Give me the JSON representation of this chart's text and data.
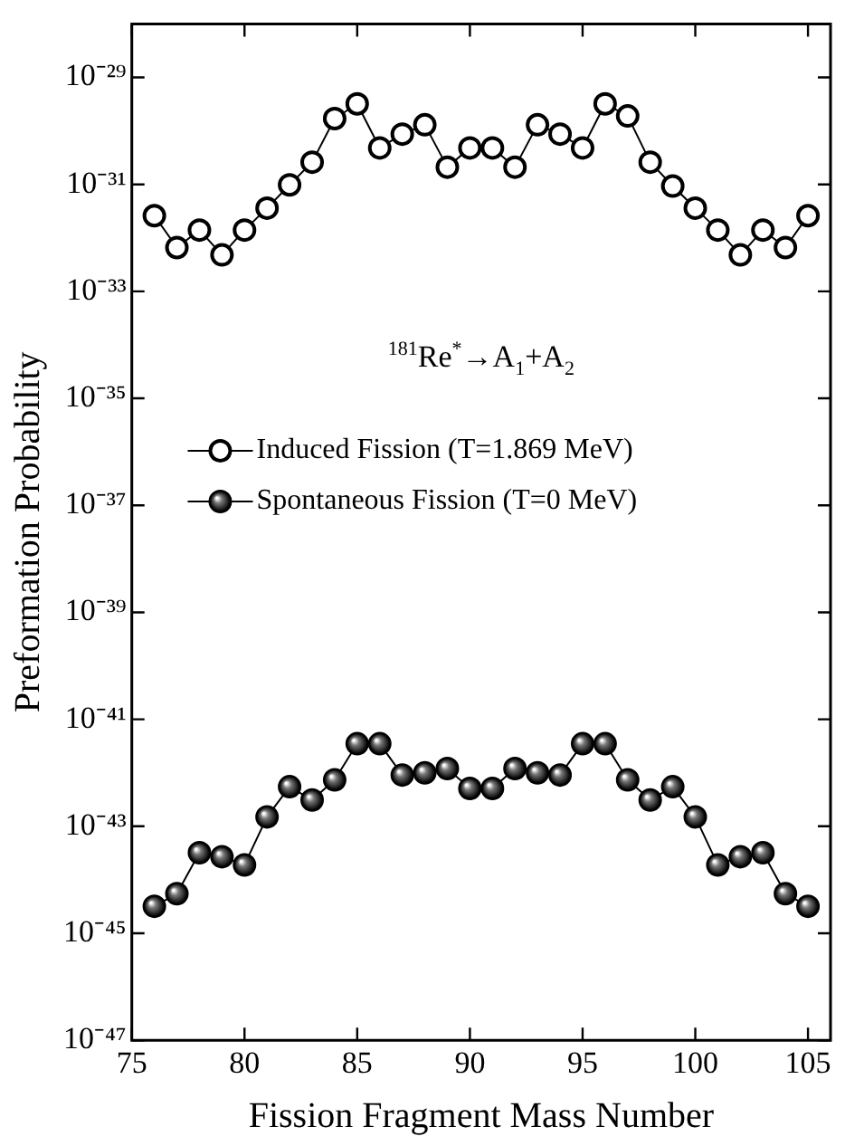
{
  "chart_data": {
    "type": "line",
    "xlabel": "Fission Fragment Mass Number",
    "ylabel": "Preformation Probability",
    "annotations": [
      "$^{181}$Re$^{*}$→A$_{1}$+A$_{2}$"
    ],
    "x": [
      76,
      77,
      78,
      79,
      80,
      81,
      82,
      83,
      84,
      85,
      86,
      87,
      88,
      89,
      90,
      91,
      92,
      93,
      94,
      95,
      96,
      97,
      98,
      99,
      100,
      101,
      102,
      103,
      104,
      105
    ],
    "series": [
      {
        "name": "Induced Fission (T=1.869 MeV)",
        "color": "#000000",
        "marker": "circle",
        "values": [
          2.6e-32,
          6.6e-33,
          1.4e-32,
          4.8e-33,
          1.4e-32,
          3.6e-32,
          9.8e-32,
          2.6e-31,
          1.7e-30,
          3.2e-30,
          4.8e-31,
          8.7e-31,
          1.3e-30,
          2.1e-31,
          4.8e-31,
          4.8e-31,
          2.1e-31,
          1.3e-30,
          8.7e-31,
          4.8e-31,
          3.2e-30,
          1.9e-30,
          2.6e-31,
          9.3e-32,
          3.6e-32,
          1.4e-32,
          4.8e-33,
          1.4e-32,
          6.6e-33,
          2.6e-32
        ]
      },
      {
        "name": "Spontaneous Fission (T=0 MeV)",
        "color": "#000000",
        "marker": "circle",
        "values": [
          3.2e-45,
          5.5e-45,
          3.2e-44,
          2.7e-44,
          1.9e-44,
          1.5e-43,
          5.5e-43,
          3.1e-43,
          7.4e-43,
          3.5e-42,
          3.5e-42,
          9.1e-43,
          1e-42,
          1.2e-42,
          5.1e-43,
          5.1e-43,
          1.2e-42,
          1e-42,
          9.1e-43,
          3.5e-42,
          3.5e-42,
          7.4e-43,
          3.1e-43,
          5.5e-43,
          1.5e-43,
          1.9e-44,
          2.7e-44,
          3.2e-44,
          5.5e-45,
          3.2e-45
        ]
      }
    ],
    "log": "y",
    "xlim": [
      75,
      106
    ],
    "xticks": [
      75,
      80,
      85,
      90,
      95,
      100,
      105
    ],
    "ylim": [
      1e-47,
      1e-28
    ],
    "yticks": [
      {
        "value": 1e-47,
        "label": "10⁻⁴⁷"
      },
      {
        "value": 1e-45,
        "label": "10⁻⁴⁵"
      },
      {
        "value": 1e-43,
        "label": "10⁻⁴³"
      },
      {
        "value": 1e-41,
        "label": "10⁻⁴¹"
      },
      {
        "value": 1e-39,
        "label": "10⁻³⁹"
      },
      {
        "value": 1e-37,
        "label": "10⁻³⁷"
      },
      {
        "value": 1e-35,
        "label": "10⁻³⁵"
      },
      {
        "value": 1e-33,
        "label": "10⁻³³"
      },
      {
        "value": 1e-31,
        "label": "10⁻³¹"
      },
      {
        "value": 1e-29,
        "label": "10⁻²⁹"
      }
    ],
    "grid": false,
    "legend": "center",
    "line_style": "solid"
  }
}
